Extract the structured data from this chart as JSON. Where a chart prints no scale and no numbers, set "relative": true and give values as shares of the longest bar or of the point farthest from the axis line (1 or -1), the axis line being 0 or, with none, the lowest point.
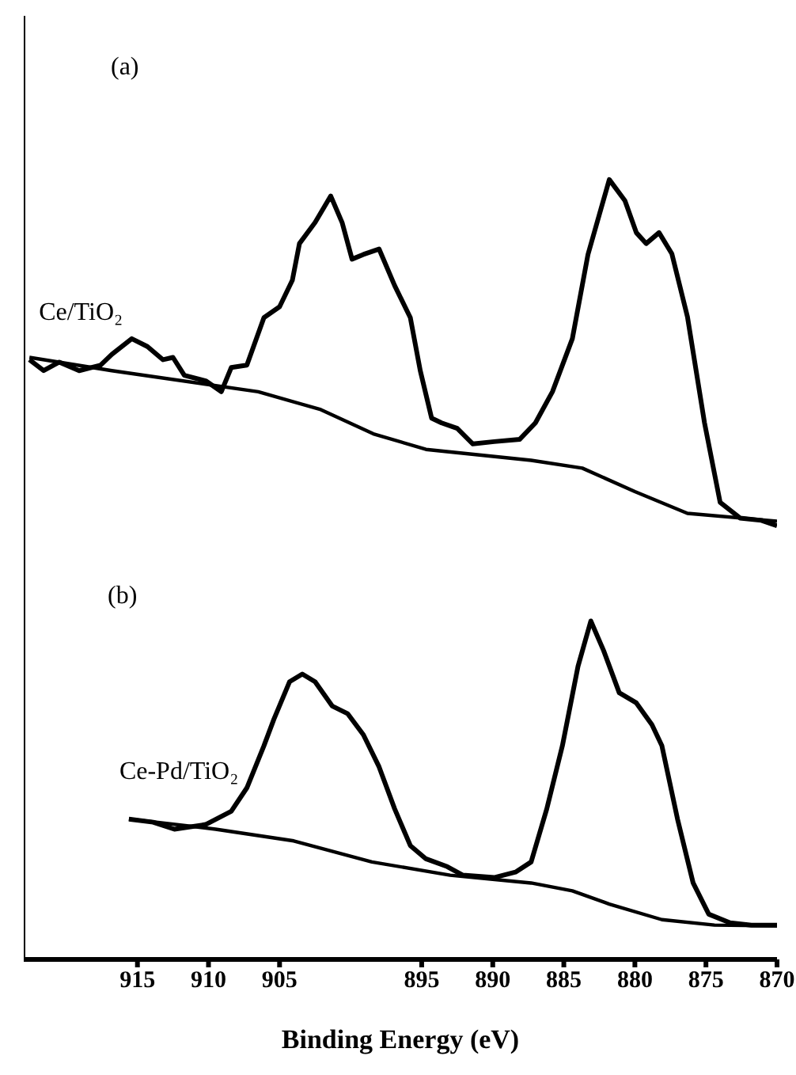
{
  "chart_data": {
    "type": "line",
    "relative": true,
    "xlabel": "Binding Energy (eV)",
    "xlim": [
      923,
      870
    ],
    "xticks": [
      915,
      910,
      905,
      895,
      890,
      885,
      880,
      875,
      870
    ],
    "tick_labels": "x",
    "grid": false,
    "legend": false,
    "marker": "none",
    "line_style": "solid",
    "annotations": [
      "(a)",
      "(b)"
    ],
    "series": [
      {
        "name": "Ce/TiO₂",
        "color": "#000000",
        "x": [
          922.6,
          921.6,
          920.5,
          919.1,
          917.6,
          916.8,
          915.4,
          914.3,
          913.2,
          912.5,
          911.7,
          910.2,
          909.1,
          908.4,
          907.3,
          906.1,
          905.0,
          904.1,
          903.6,
          902.5,
          901.4,
          900.6,
          899.9,
          899.1,
          898.0,
          896.9,
          895.8,
          895.1,
          894.3,
          893.6,
          892.5,
          891.4,
          889.9,
          888.1,
          887.0,
          885.8,
          884.4,
          883.3,
          881.8,
          880.7,
          879.9,
          879.2,
          878.3,
          877.4,
          876.3,
          875.1,
          874.0,
          872.6,
          871.1,
          870.0
        ],
        "values": [
          0.769,
          0.755,
          0.766,
          0.755,
          0.762,
          0.776,
          0.796,
          0.786,
          0.769,
          0.772,
          0.749,
          0.742,
          0.728,
          0.759,
          0.762,
          0.823,
          0.837,
          0.871,
          0.918,
          0.945,
          0.979,
          0.945,
          0.898,
          0.904,
          0.911,
          0.864,
          0.823,
          0.755,
          0.694,
          0.688,
          0.681,
          0.661,
          0.664,
          0.667,
          0.688,
          0.728,
          0.796,
          0.904,
          1,
          0.973,
          0.932,
          0.918,
          0.932,
          0.905,
          0.824,
          0.688,
          0.586,
          0.566,
          0.563,
          0.556
        ]
      },
      {
        "color": "#000000",
        "x": [
          922.6,
          916.8,
          906.5,
          902.1,
          898.4,
          894.7,
          887.3,
          883.7,
          880.0,
          876.3,
          870.0
        ],
        "values": [
          0.772,
          0.755,
          0.728,
          0.705,
          0.674,
          0.654,
          0.64,
          0.63,
          0.6,
          0.572,
          0.562
        ]
      },
      {
        "name": "Ce-Pd/TiO₂",
        "color": "#000000",
        "x": [
          915.6,
          913.9,
          912.4,
          910.2,
          908.4,
          907.3,
          906.1,
          905.4,
          904.3,
          903.4,
          902.5,
          901.3,
          900.2,
          899.1,
          898.0,
          896.9,
          895.8,
          894.7,
          893.2,
          892.1,
          889.9,
          888.4,
          887.3,
          886.2,
          885.1,
          884.0,
          883.1,
          882.2,
          881.1,
          879.9,
          878.8,
          878.1,
          877.0,
          875.9,
          874.8,
          873.3,
          871.8,
          870.0
        ],
        "values": [
          0.18,
          0.176,
          0.167,
          0.173,
          0.19,
          0.22,
          0.274,
          0.308,
          0.356,
          0.366,
          0.356,
          0.325,
          0.315,
          0.288,
          0.247,
          0.193,
          0.146,
          0.129,
          0.119,
          0.108,
          0.105,
          0.112,
          0.125,
          0.193,
          0.274,
          0.376,
          0.434,
          0.396,
          0.342,
          0.329,
          0.301,
          0.274,
          0.18,
          0.098,
          0.058,
          0.047,
          0.044,
          0.044
        ]
      },
      {
        "color": "#000000",
        "x": [
          915.6,
          909.5,
          904.0,
          898.5,
          893.0,
          887.3,
          884.4,
          881.8,
          878.1,
          874.4,
          870.0
        ],
        "values": [
          0.18,
          0.167,
          0.152,
          0.125,
          0.108,
          0.098,
          0.088,
          0.071,
          0.051,
          0.044,
          0.043
        ]
      }
    ]
  }
}
